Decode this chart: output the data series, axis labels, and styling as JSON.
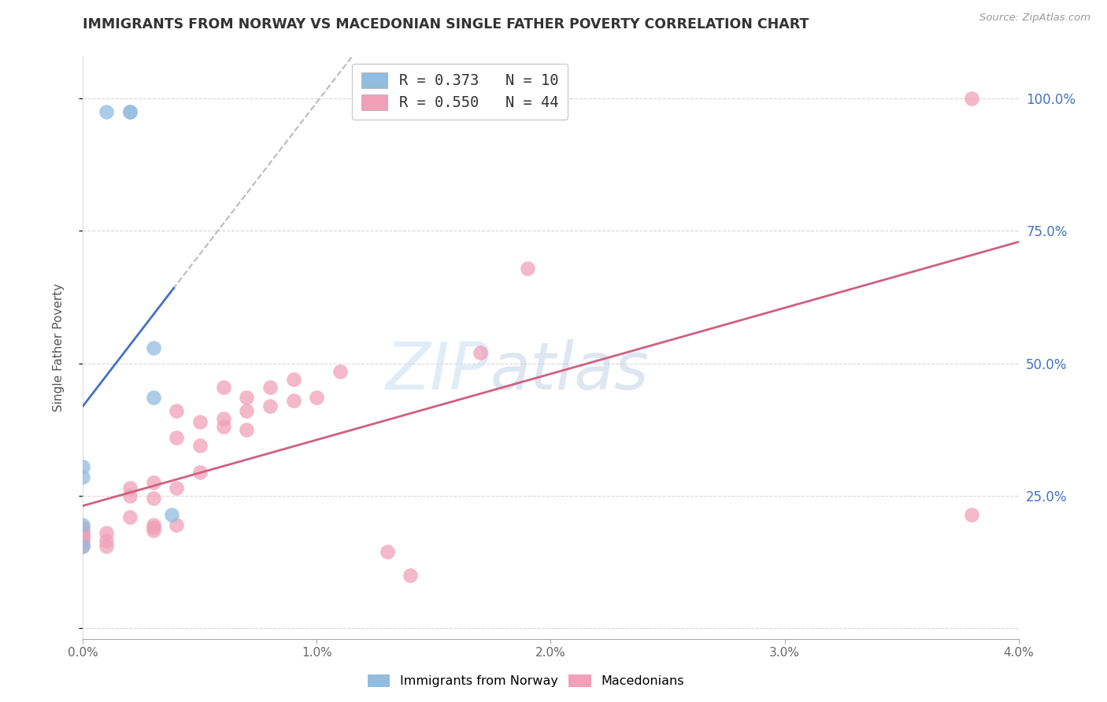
{
  "title": "IMMIGRANTS FROM NORWAY VS MACEDONIAN SINGLE FATHER POVERTY CORRELATION CHART",
  "source": "Source: ZipAtlas.com",
  "ylabel": "Single Father Poverty",
  "legend_label_blue": "R = 0.373   N = 10",
  "legend_label_pink": "R = 0.550   N = 44",
  "x_min": 0.0,
  "x_max": 0.04,
  "y_min": -0.02,
  "y_max": 1.08,
  "y_ticks": [
    0.0,
    0.25,
    0.5,
    0.75,
    1.0
  ],
  "y_tick_labels_right": [
    "",
    "25.0%",
    "50.0%",
    "75.0%",
    "100.0%"
  ],
  "x_ticks": [
    0.0,
    0.01,
    0.02,
    0.03,
    0.04
  ],
  "x_tick_labels": [
    "0.0%",
    "1.0%",
    "2.0%",
    "3.0%",
    "4.0%"
  ],
  "bottom_legend_labels": [
    "Immigrants from Norway",
    "Macedonians"
  ],
  "watermark_zip": "ZIP",
  "watermark_atlas": "atlas",
  "blue_color": "#92bce0",
  "pink_color": "#f0a0b8",
  "blue_line_color": "#4472c4",
  "pink_line_color": "#d06080",
  "blue_line_intercept": 0.375,
  "blue_line_slope": 16.5,
  "pink_line_intercept": 0.115,
  "pink_line_slope": 16.5,
  "norway_x": [
    0.0,
    0.0,
    0.0,
    0.0,
    0.001,
    0.002,
    0.002,
    0.003,
    0.003,
    0.0038
  ],
  "norway_y": [
    0.155,
    0.195,
    0.285,
    0.305,
    0.975,
    0.975,
    0.975,
    0.435,
    0.53,
    0.215
  ],
  "macedonian_x": [
    0.0,
    0.0,
    0.0,
    0.0,
    0.0,
    0.0,
    0.0,
    0.0,
    0.001,
    0.001,
    0.001,
    0.002,
    0.002,
    0.002,
    0.003,
    0.003,
    0.003,
    0.003,
    0.003,
    0.004,
    0.004,
    0.004,
    0.004,
    0.005,
    0.005,
    0.005,
    0.006,
    0.006,
    0.006,
    0.007,
    0.007,
    0.007,
    0.008,
    0.008,
    0.009,
    0.009,
    0.01,
    0.011,
    0.013,
    0.014,
    0.017,
    0.019,
    0.038,
    0.038
  ],
  "macedonian_y": [
    0.155,
    0.16,
    0.165,
    0.17,
    0.175,
    0.18,
    0.185,
    0.19,
    0.155,
    0.165,
    0.18,
    0.21,
    0.25,
    0.265,
    0.185,
    0.19,
    0.195,
    0.245,
    0.275,
    0.195,
    0.265,
    0.36,
    0.41,
    0.295,
    0.345,
    0.39,
    0.38,
    0.395,
    0.455,
    0.375,
    0.41,
    0.435,
    0.42,
    0.455,
    0.43,
    0.47,
    0.435,
    0.485,
    0.145,
    0.1,
    0.52,
    0.68,
    0.215,
    1.0
  ]
}
